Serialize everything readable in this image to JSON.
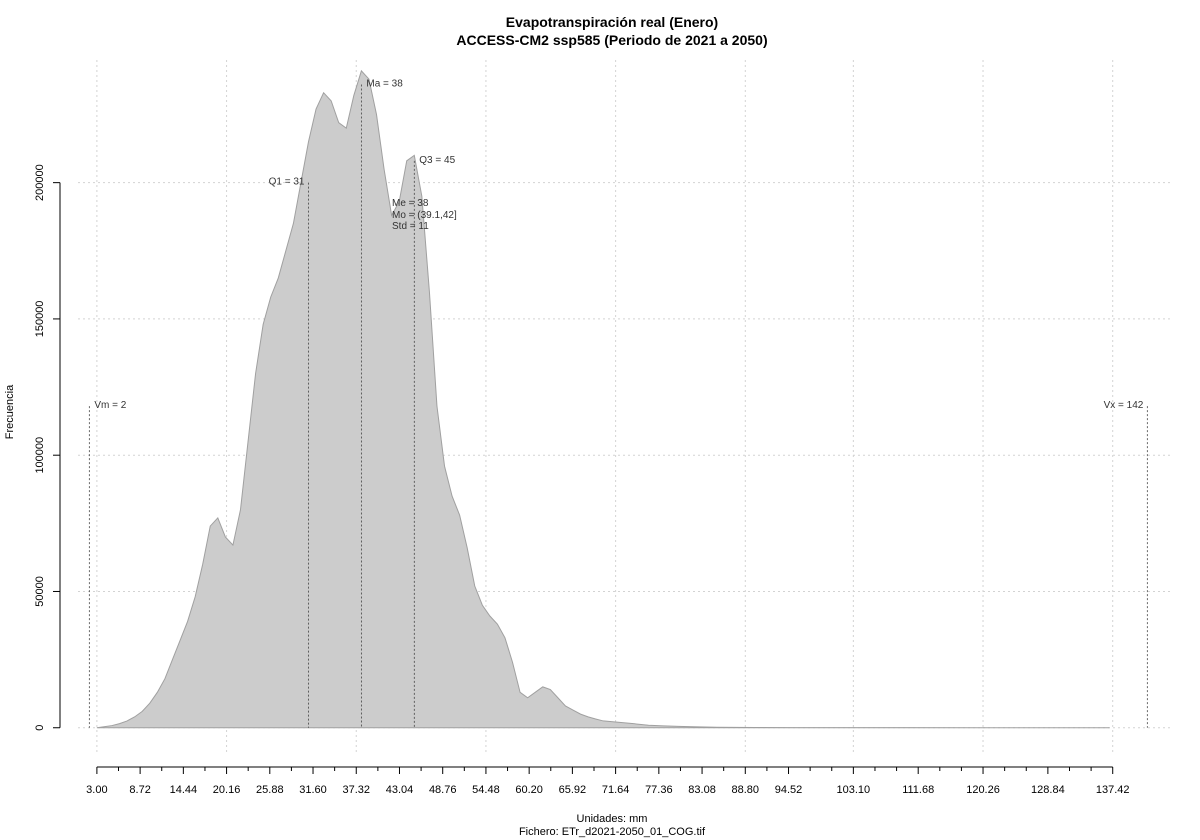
{
  "chart_data": {
    "type": "area",
    "title": "Evapotranspiración real (Enero)",
    "subtitle": "ACCESS-CM2 ssp585 (Periodo de 2021 a 2050)",
    "xlabel": "Unidades: mm",
    "ylabel": "Frecuencia",
    "footer": "Fichero: ETr_d2021-2050_01_COG.tif",
    "xlim": [
      0.5,
      145
    ],
    "ylim": [
      -10000,
      245000
    ],
    "grid": true,
    "fill_color": "#cccccc",
    "line_color": "#a0a0a0",
    "x_ticks": [
      3.0,
      8.72,
      14.44,
      20.16,
      25.88,
      31.6,
      37.32,
      43.04,
      48.76,
      54.48,
      60.2,
      65.92,
      71.64,
      77.36,
      83.08,
      88.8,
      94.52,
      103.1,
      111.68,
      120.26,
      128.84,
      137.42
    ],
    "x_tick_labels": [
      "3.00",
      "8.72",
      "14.44",
      "20.16",
      "25.88",
      "31.60",
      "37.32",
      "43.04",
      "48.76",
      "54.48",
      "60.20",
      "65.92",
      "71.64",
      "77.36",
      "83.08",
      "88.80",
      "94.52",
      "103.10",
      "111.68",
      "120.26",
      "128.84",
      "137.42"
    ],
    "y_ticks": [
      0,
      50000,
      100000,
      150000,
      200000
    ],
    "y_tick_labels": [
      "0",
      "50000",
      "100000",
      "150000",
      "200000"
    ],
    "x_grid": [
      3.0,
      20.16,
      37.32,
      54.48,
      71.64,
      88.8,
      103.1,
      120.26,
      137.42
    ],
    "x": [
      3,
      5,
      6,
      7,
      8,
      9,
      10,
      11,
      12,
      13,
      14,
      15,
      16,
      17,
      18,
      19,
      20,
      21,
      22,
      23,
      24,
      25,
      26,
      27,
      28,
      29,
      30,
      31,
      32,
      33,
      34,
      35,
      36,
      37,
      38,
      39,
      40,
      41,
      42,
      43,
      44,
      45,
      46,
      47,
      48,
      49,
      50,
      51,
      52,
      53,
      54,
      55,
      56,
      57,
      58,
      59,
      60,
      61,
      62,
      63,
      64,
      65,
      66,
      67,
      68,
      69,
      70,
      72,
      74,
      76,
      78,
      80,
      82,
      85,
      90,
      95,
      100,
      110,
      120,
      130,
      137
    ],
    "values": [
      0,
      800,
      1500,
      2500,
      4000,
      6000,
      9000,
      13000,
      18000,
      25000,
      32000,
      39000,
      48000,
      60000,
      74000,
      77000,
      70000,
      67000,
      80000,
      105000,
      130000,
      148000,
      158000,
      165000,
      175000,
      185000,
      200000,
      215000,
      227000,
      233000,
      230000,
      222000,
      220000,
      232000,
      241000,
      238000,
      225000,
      205000,
      188000,
      193000,
      208000,
      210000,
      195000,
      160000,
      118000,
      96000,
      85000,
      78000,
      66000,
      52000,
      45000,
      41000,
      38000,
      33000,
      24000,
      13000,
      11000,
      13000,
      15000,
      14000,
      11000,
      8000,
      6500,
      5000,
      4000,
      3200,
      2500,
      2000,
      1500,
      900,
      700,
      500,
      350,
      200,
      100,
      60,
      40,
      25,
      15,
      8,
      0
    ],
    "markers": [
      {
        "label": "Vm = 2",
        "x": 2,
        "y": 118000,
        "side": "right"
      },
      {
        "label": "Q1 = 31",
        "x": 31.0,
        "y": 200000,
        "side": "left"
      },
      {
        "label": "Ma = 38",
        "x": 38,
        "y": 236000,
        "side": "right"
      },
      {
        "label": "Q3 = 45",
        "x": 45.0,
        "y": 208000,
        "side": "right"
      },
      {
        "label": "Vx = 142",
        "x": 142,
        "y": 118000,
        "side": "left"
      }
    ],
    "stats": [
      "Me = 38",
      "Mo = (39.1,42]",
      "Std = 11"
    ]
  }
}
